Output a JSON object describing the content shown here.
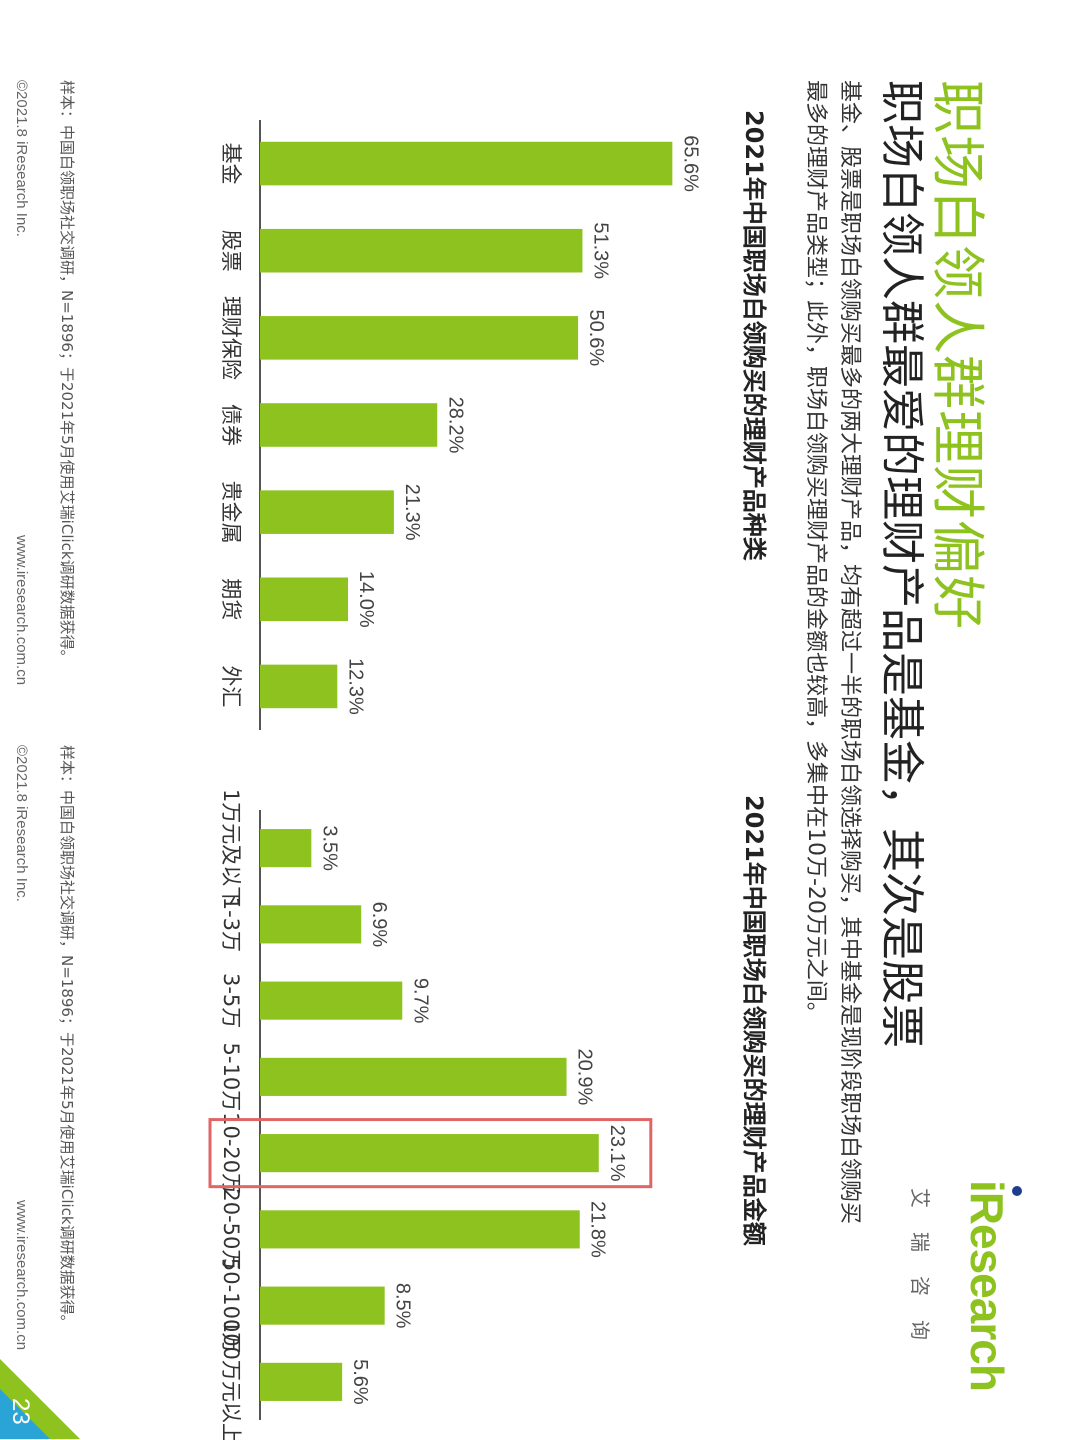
{
  "header": {
    "title": "职场白领人群理财偏好",
    "subtitle": "职场白领人群最爱的理财产品是基金，其次是股票",
    "description": "基金、股票是职场白领购买最多的两大理财产品，均有超过一半的职场白领选择购买，其中基金是现阶段职场白领购买最多的理财产品类型；此外，职场白领购买理财产品的金额也较高，多集中在10万-20万元之间。"
  },
  "logo": {
    "word": "iResearch",
    "cn": "艾瑞咨询"
  },
  "colors": {
    "accent": "#8dc21f",
    "highlight_box": "#e06666",
    "axis": "#555555"
  },
  "chart_data": [
    {
      "type": "bar",
      "orientation": "vertical",
      "title": "2021年中国职场白领购买的理财产品种类",
      "categories": [
        "基金",
        "股票",
        "理财保险",
        "债券",
        "贵金属",
        "期货",
        "外汇"
      ],
      "values": [
        65.6,
        51.3,
        50.6,
        28.2,
        21.3,
        14.0,
        12.3
      ],
      "value_labels": [
        "65.6%",
        "51.3%",
        "50.6%",
        "28.2%",
        "21.3%",
        "14.0%",
        "12.3%"
      ],
      "ylim": [
        0,
        70
      ],
      "grid": false,
      "color": "#8dc21f"
    },
    {
      "type": "bar",
      "orientation": "vertical",
      "title": "2021年中国职场白领购买的理财产品金额",
      "categories": [
        "1万元及以下",
        "1-3万",
        "3-5万",
        "5-10万",
        "10-20万",
        "20-50万",
        "50-100万",
        "100万元以上"
      ],
      "values": [
        3.5,
        6.9,
        9.7,
        20.9,
        23.1,
        21.8,
        8.5,
        5.6
      ],
      "value_labels": [
        "3.5%",
        "6.9%",
        "9.7%",
        "20.9%",
        "23.1%",
        "21.8%",
        "8.5%",
        "5.6%"
      ],
      "highlighted_category": "10-20万",
      "ylim": [
        0,
        30
      ],
      "grid": false,
      "color": "#8dc21f"
    }
  ],
  "footer": {
    "note": "样本：中国白领职场社交调研，N=1896；于2021年5月使用艾瑞iClick调研数据获得。",
    "copyright": "©2021.8 iResearch Inc.",
    "website": "www.iresearch.com.cn",
    "page_number": "23"
  }
}
